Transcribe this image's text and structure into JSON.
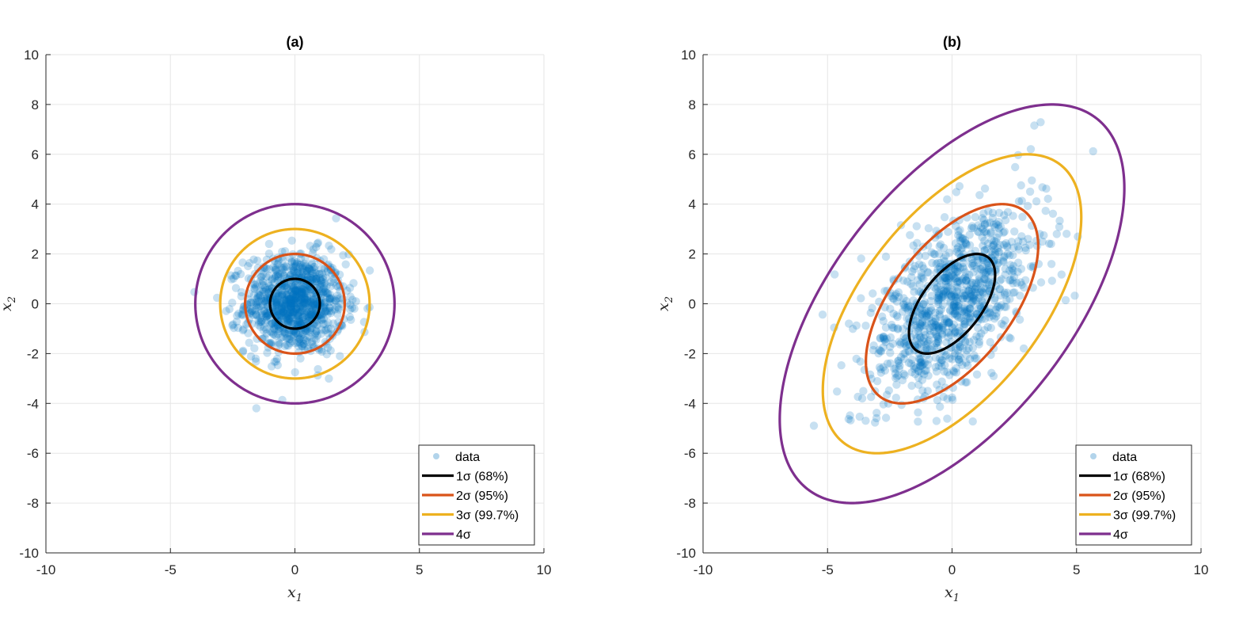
{
  "chart_data": [
    {
      "type": "scatter",
      "title": "(a)",
      "xlabel": "x1",
      "ylabel": "x2",
      "xlim": [
        -10,
        10
      ],
      "ylim": [
        -10,
        10
      ],
      "xticks": [
        -10,
        -5,
        0,
        5,
        10
      ],
      "yticks": [
        -10,
        -8,
        -6,
        -4,
        -2,
        0,
        2,
        4,
        6,
        8,
        10
      ],
      "grid": true,
      "legend_location": "bottom-right",
      "scatter": {
        "name": "data",
        "n_points": 1000,
        "mean": [
          0,
          0
        ],
        "std": [
          1,
          1
        ],
        "correlation": 0,
        "color": "#0072BD",
        "alpha": 0.22
      },
      "contours": [
        {
          "label": "1σ (68%)",
          "k": 1,
          "color": "#000000"
        },
        {
          "label": "2σ (95%)",
          "k": 2,
          "color": "#D95319"
        },
        {
          "label": "3σ (99.7%)",
          "k": 3,
          "color": "#EDB120"
        },
        {
          "label": "4σ",
          "k": 4,
          "color": "#7E2F8E"
        }
      ]
    },
    {
      "type": "scatter",
      "title": "(b)",
      "xlabel": "x1",
      "ylabel": "x2",
      "xlim": [
        -10,
        10
      ],
      "ylim": [
        -10,
        10
      ],
      "xticks": [
        -10,
        -5,
        0,
        5,
        10
      ],
      "yticks": [
        -10,
        -8,
        -6,
        -4,
        -2,
        0,
        2,
        4,
        6,
        8,
        10
      ],
      "grid": true,
      "legend_location": "bottom-right",
      "scatter": {
        "name": "data",
        "n_points": 1000,
        "mean": [
          0,
          0
        ],
        "std": [
          1.73,
          2.0
        ],
        "correlation": 0.58,
        "color": "#0072BD",
        "alpha": 0.22
      },
      "contours": [
        {
          "label": "1σ (68%)",
          "k": 1,
          "color": "#000000"
        },
        {
          "label": "2σ (95%)",
          "k": 2,
          "color": "#D95319"
        },
        {
          "label": "3σ (99.7%)",
          "k": 3,
          "color": "#EDB120"
        },
        {
          "label": "4σ",
          "k": 4,
          "color": "#7E2F8E"
        }
      ]
    }
  ]
}
